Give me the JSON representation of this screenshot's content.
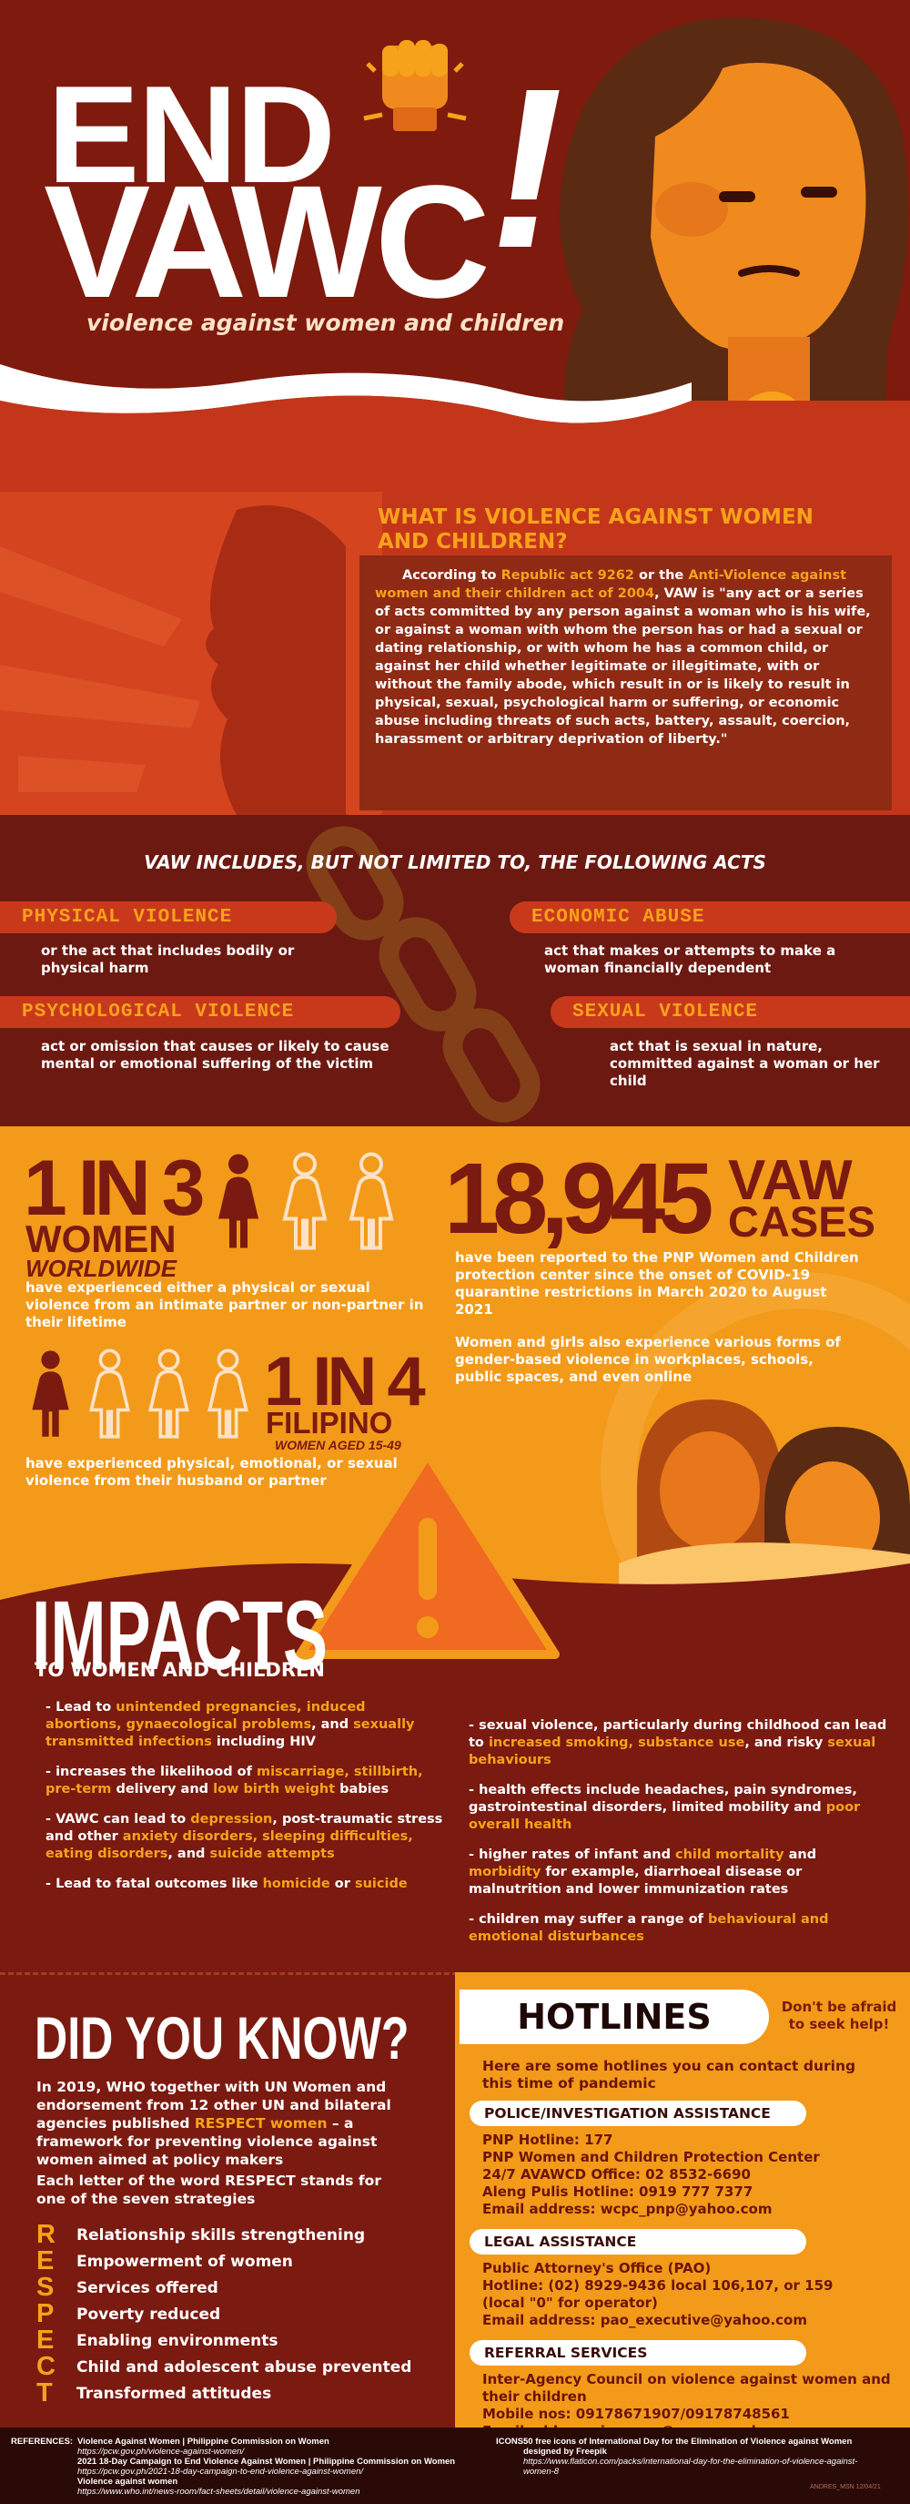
{
  "header": {
    "title_line1": "END",
    "title_line2": "VAWC",
    "exclamation": "!",
    "subtitle": "violence against women and children"
  },
  "definition": {
    "heading": "WHAT IS VIOLENCE AGAINST WOMEN AND CHILDREN?",
    "paragraph": [
      "According to ",
      "Republic act 9262",
      " or the ",
      "Anti-Violence against women and their children act of 2004",
      ", VAW is \"any act or a series of acts committed by any person against a woman who is his wife, or against a woman with whom the person has or had a sexual or dating relationship, or with whom he has a common child, or against her child whether legitimate or illegitimate, with or without the family abode, which result in or is likely to result in physical, sexual, psychological harm or suffering, or economic abuse including threats of such acts, battery, assault, coercion, harassment or arbitrary deprivation of liberty.\""
    ]
  },
  "acts": {
    "heading": "VAW INCLUDES, BUT NOT LIMITED TO, THE FOLLOWING ACTS",
    "items": [
      {
        "title": "PHYSICAL VIOLENCE",
        "description": "or the act that includes bodily or physical harm"
      },
      {
        "title": "ECONOMIC ABUSE",
        "description": "act that makes or attempts to make a woman financially dependent"
      },
      {
        "title": "PSYCHOLOGICAL VIOLENCE",
        "description": "act or omission that causes or likely to cause mental or emotional suffering of the victim"
      },
      {
        "title": "SEXUAL VIOLENCE",
        "description": "act that is sexual in nature, committed against a woman or her child"
      }
    ]
  },
  "statistics": {
    "worldwide": {
      "ratio": "1 IN 3",
      "group": "WOMEN",
      "scope": "WORLDWIDE",
      "description": "have experienced either a physical or sexual violence from an intimate partner or non-partner in their lifetime"
    },
    "cases": {
      "number": "18,945",
      "label_line1": "VAW",
      "label_line2": "CASES",
      "description": "have been reported to the PNP Women and Children protection center since the onset of COVID-19 quarantine restrictions in March 2020 to August 2021",
      "note": "Women and girls also experience various forms of gender-based violence in workplaces, schools, public spaces, and even online"
    },
    "filipino": {
      "ratio": "1 IN 4",
      "group": "FILIPINO",
      "scope": "WOMEN AGED 15-49",
      "description": "have experienced physical, emotional, or sexual violence from their husband or partner"
    }
  },
  "impacts": {
    "title": "IMPACTS",
    "subtitle": "TO WOMEN AND CHILDREN",
    "left": [
      [
        "- Lead to ",
        "unintended pregnancies, induced abortions, gynaecological problems",
        ", and ",
        "sexually transmitted infections",
        " including HIV"
      ],
      [
        "- increases the likelihood of ",
        "miscarriage, stillbirth, pre-term",
        " delivery and ",
        "low birth weight",
        " babies"
      ],
      [
        "- VAWC can lead to ",
        "depression",
        ", post-traumatic stress and other ",
        "anxiety disorders, sleeping difficulties, eating disorders",
        ", and ",
        "suicide attempts"
      ],
      [
        "- Lead to fatal outcomes like ",
        "homicide",
        " or ",
        "suicide"
      ]
    ],
    "right": [
      [
        "- sexual violence, particularly during childhood can lead to ",
        "increased smoking, substance use",
        ", and risky ",
        "sexual behaviours"
      ],
      [
        "- health effects include headaches, pain syndromes, gastrointestinal disorders, limited mobility and ",
        "poor overall health"
      ],
      [
        "- higher rates of infant and ",
        "child mortality",
        " and ",
        "morbidity",
        " for example, diarrhoeal disease or malnutrition and lower immunization rates"
      ],
      [
        "- children may suffer a range of ",
        "behavioural and emotional disturbances"
      ]
    ]
  },
  "did_you_know": {
    "title": "DID YOU KNOW?",
    "paragraph": [
      "In 2019, WHO together with UN Women and endorsement from 12 other UN and bilateral agencies published ",
      "RESPECT women",
      " – a framework for preventing violence against women aimed at policy makers"
    ],
    "intro": "Each letter of the word RESPECT stands for one of the seven strategies",
    "respect": [
      {
        "letter": "R",
        "text": "Relationship skills strengthening"
      },
      {
        "letter": "E",
        "text": "Empowerment of women"
      },
      {
        "letter": "S",
        "text": "Services offered"
      },
      {
        "letter": "P",
        "text": "Poverty reduced"
      },
      {
        "letter": "E",
        "text": "Enabling environments"
      },
      {
        "letter": "C",
        "text": "Child and adolescent abuse prevented"
      },
      {
        "letter": "T",
        "text": "Transformed attitudes"
      }
    ]
  },
  "hotlines": {
    "title": "HOTLINES",
    "tagline": "Don't be afraid to seek help!",
    "intro": "Here are some hotlines you can contact during this time of pandemic",
    "sections": [
      {
        "title": "POLICE/INVESTIGATION ASSISTANCE",
        "lines": [
          "PNP Hotline: 177",
          "PNP Women and Children Protection Center",
          "24/7 AVAWCD Office: 02 8532-6690",
          "Aleng Pulis Hotline: 0919 777 7377",
          "Email address: wcpc_pnp@yahoo.com"
        ]
      },
      {
        "title": "LEGAL ASSISTANCE",
        "lines": [
          "Public Attorney's Office (PAO)",
          "Hotline: (02) 8929-9436 local 106,107, or 159",
          "(local \"0\" for operator)",
          "Email address: pao_executive@yahoo.com"
        ]
      },
      {
        "title": "REFERRAL SERVICES",
        "lines": [
          "Inter-Agency Council on violence against women and their children",
          "Mobile nos: 09178671907/09178748561",
          "Email address: iacvawc@pcw.gov.ph"
        ]
      }
    ]
  },
  "footer": {
    "references_label": "REFERENCES:",
    "references": [
      {
        "title": "Violence Against Women | Philippine Commission on Women",
        "url": "https://pcw.gov.ph/violence-against-women/"
      },
      {
        "title": "2021 18-Day Campaign to End Violence Against Women | Philippine Commission on Women",
        "url": "https://pcw.gov.ph/2021-18-day-campaign-to-end-violence-against-women/"
      },
      {
        "title": "Violence against women",
        "url": "https://www.who.int/news-room/fact-sheets/detail/violence-against-women"
      }
    ],
    "icons_label": "ICONS:",
    "icons": {
      "title": "50 free icons of International Day for the Elimination of Violence against Women designed by Freepik",
      "url": "https://www.flaticon.com/packs/international-day-for-the-elimination-of-violence-against-women-8"
    },
    "signature": "ANDRES_MSN 12/04/21"
  }
}
